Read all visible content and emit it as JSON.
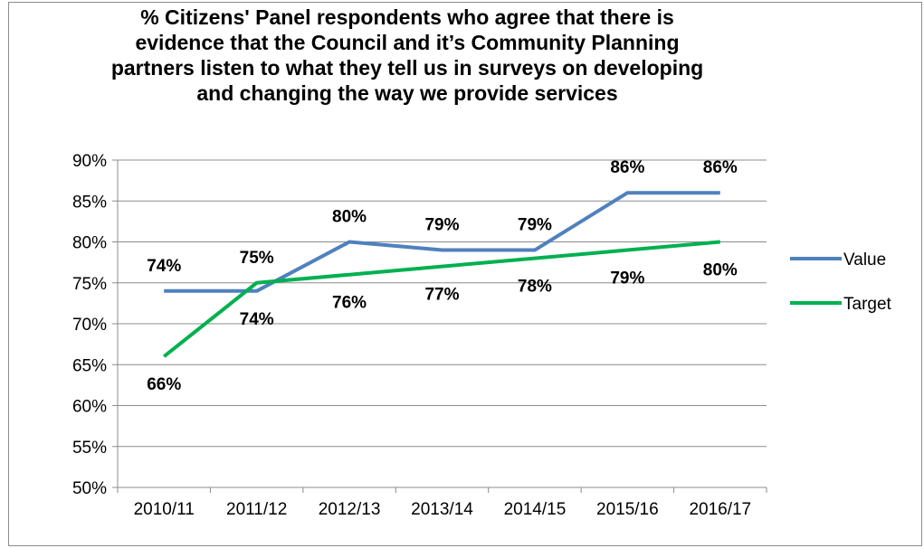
{
  "chart_data": {
    "type": "line",
    "title": "% Citizens' Panel respondents who agree that there is\nevidence that the Council and it’s Community Planning\npartners listen to what they tell us in surveys on developing\nand changing the way we provide services",
    "categories": [
      "2010/11",
      "2011/12",
      "2012/13",
      "2013/14",
      "2014/15",
      "2015/16",
      "2016/17"
    ],
    "series": [
      {
        "name": "Value",
        "color": "#4f81bd",
        "values": [
          74,
          74,
          80,
          79,
          79,
          86,
          86
        ],
        "labels": [
          "74%",
          "74%",
          "80%",
          "79%",
          "79%",
          "86%",
          "86%"
        ]
      },
      {
        "name": "Target",
        "color": "#00b050",
        "values": [
          66,
          75,
          76,
          77,
          78,
          79,
          80
        ],
        "labels": [
          "66%",
          "75%",
          "76%",
          "77%",
          "78%",
          "79%",
          "80%"
        ]
      }
    ],
    "ylim": [
      50,
      90
    ],
    "yticks": [
      "50%",
      "55%",
      "60%",
      "65%",
      "70%",
      "75%",
      "80%",
      "85%",
      "90%"
    ],
    "grid": true,
    "legend": "right"
  }
}
